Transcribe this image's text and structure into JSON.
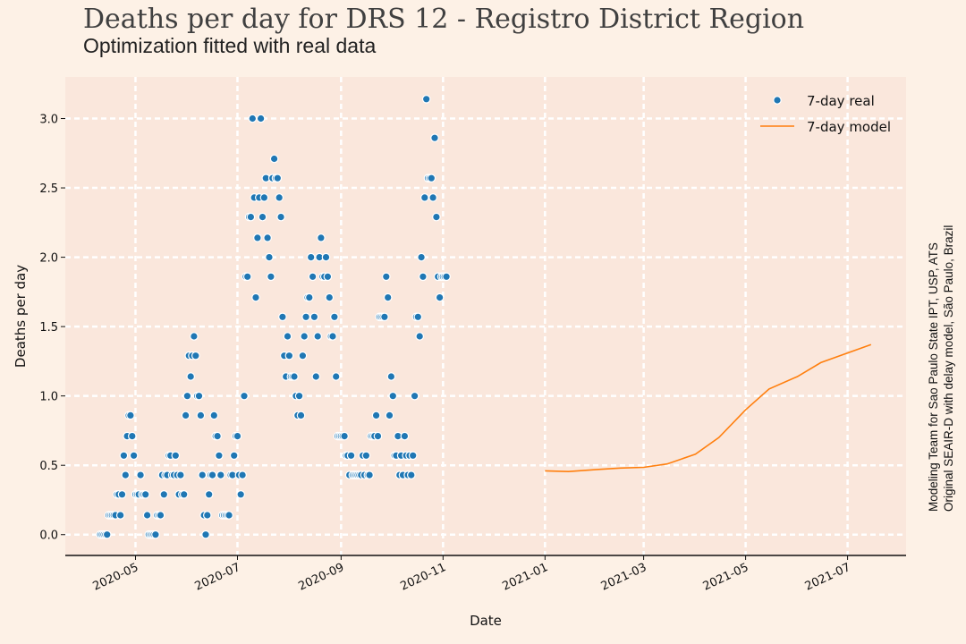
{
  "header": {
    "title": "Deaths per day for DRS 12 - Registro District Region",
    "subtitle": "Optimization fitted with real data"
  },
  "side_note": {
    "line1": "Modeling Team for Sao Paulo State IPT, USP, ATS",
    "line2": "Original SEAIR-D with delay model, São Paulo, Brazil"
  },
  "colors": {
    "background": "#fdf1e6",
    "plot_area": "#fae7dc",
    "grid": "#ffffff",
    "real": "#1f77b4",
    "model": "#ff7f0e"
  },
  "chart_data": {
    "type": "scatter",
    "title": "Deaths per day for DRS 12 - Registro District Region",
    "subtitle": "Optimization fitted with real data",
    "xlabel": "Date",
    "ylabel": "Deaths per day",
    "x_ticks": [
      "2020-05",
      "2020-07",
      "2020-09",
      "2020-11",
      "2021-01",
      "2021-03",
      "2021-05",
      "2021-07"
    ],
    "y_ticks": [
      "0.0",
      "0.5",
      "1.0",
      "1.5",
      "2.0",
      "2.5",
      "3.0"
    ],
    "xlim": [
      "2020-03-20",
      "2021-08-05"
    ],
    "ylim": [
      -0.15,
      3.3
    ],
    "grid": true,
    "legend_position": "top-right",
    "series": [
      {
        "name": "7-day real",
        "kind": "scatter",
        "start_date": "2020-04-10",
        "values": [
          0.0,
          0.0,
          0.0,
          0.0,
          0.0,
          0.14,
          0.14,
          0.14,
          0.14,
          0.14,
          0.29,
          0.29,
          0.14,
          0.29,
          0.57,
          0.43,
          0.71,
          0.86,
          0.86,
          0.71,
          0.57,
          0.29,
          0.29,
          0.29,
          0.43,
          0.29,
          0.29,
          0.29,
          0.14,
          0.0,
          0.0,
          0.0,
          0.0,
          0.0,
          0.14,
          0.14,
          0.14,
          0.43,
          0.29,
          0.43,
          0.43,
          0.57,
          0.57,
          0.43,
          0.43,
          0.57,
          0.43,
          0.29,
          0.43,
          0.29,
          0.29,
          0.86,
          1.0,
          1.29,
          1.14,
          1.29,
          1.43,
          1.29,
          1.0,
          1.0,
          0.86,
          0.43,
          0.14,
          0.0,
          0.14,
          0.29,
          0.43,
          0.43,
          0.86,
          0.71,
          0.71,
          0.57,
          0.43,
          0.14,
          0.14,
          0.14,
          0.14,
          0.14,
          0.43,
          0.43,
          0.57,
          0.71,
          0.71,
          0.43,
          0.29,
          0.43,
          1.0,
          1.86,
          1.86,
          2.29,
          2.29,
          3.0,
          2.43,
          1.71,
          2.14,
          2.43,
          3.0,
          2.29,
          2.43,
          2.57,
          2.14,
          2.0,
          1.86,
          2.57,
          2.71,
          2.57,
          2.57,
          2.43,
          2.29,
          1.57,
          1.29,
          1.14,
          1.43,
          1.29,
          1.14,
          1.14,
          1.14,
          1.0,
          0.86,
          1.0,
          0.86,
          1.29,
          1.43,
          1.57,
          1.71,
          1.71,
          2.0,
          1.86,
          1.57,
          1.14,
          1.43,
          2.0,
          2.14,
          1.86,
          1.86,
          2.0,
          1.86,
          1.71,
          1.43,
          1.43,
          1.57,
          1.14,
          0.71,
          0.71,
          0.71,
          0.71,
          0.71,
          0.57,
          0.57,
          0.43,
          0.57,
          0.43,
          0.43,
          0.43,
          0.43,
          0.43,
          0.43,
          0.57,
          0.43,
          0.57,
          0.43,
          0.43,
          0.71,
          0.71,
          0.71,
          0.86,
          0.71,
          1.57,
          1.57,
          1.57,
          1.57,
          1.86,
          1.71,
          0.86,
          1.14,
          1.0,
          0.57,
          0.57,
          0.71,
          0.43,
          0.57,
          0.43,
          0.71,
          0.57,
          0.43,
          0.57,
          0.43,
          0.57,
          1.0,
          1.57,
          1.57,
          1.43,
          2.0,
          1.86,
          2.43,
          3.14,
          2.57,
          2.57,
          2.57,
          2.43,
          2.86,
          2.29,
          1.86,
          1.71,
          1.86,
          1.86,
          1.86,
          1.86
        ]
      },
      {
        "name": "7-day model",
        "kind": "line",
        "points": [
          [
            "2021-01-01",
            0.46
          ],
          [
            "2021-01-15",
            0.455
          ],
          [
            "2021-02-01",
            0.47
          ],
          [
            "2021-02-15",
            0.48
          ],
          [
            "2021-03-01",
            0.485
          ],
          [
            "2021-03-15",
            0.51
          ],
          [
            "2021-04-01",
            0.58
          ],
          [
            "2021-04-15",
            0.7
          ],
          [
            "2021-05-01",
            0.9
          ],
          [
            "2021-05-15",
            1.05
          ],
          [
            "2021-06-01",
            1.14
          ],
          [
            "2021-06-15",
            1.24
          ],
          [
            "2021-07-01",
            1.31
          ],
          [
            "2021-07-15",
            1.37
          ]
        ]
      }
    ]
  }
}
